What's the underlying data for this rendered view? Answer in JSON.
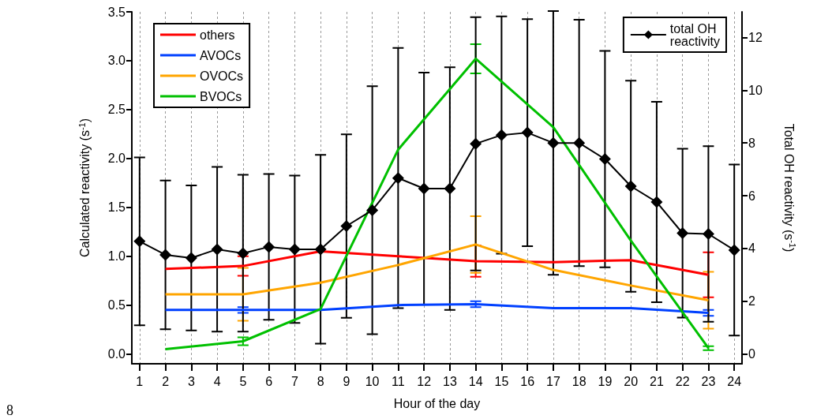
{
  "chart_data": {
    "type": "line",
    "xlabel": "Hour of the day",
    "ylabel": "Calculated reactivity (s$^{-1}$)",
    "y2label": "Total OH reactivity (s$^{-1}$)",
    "x": [
      1,
      2,
      3,
      4,
      5,
      6,
      7,
      8,
      9,
      10,
      11,
      12,
      13,
      14,
      15,
      16,
      17,
      18,
      19,
      20,
      21,
      22,
      23,
      24
    ],
    "xlim": [
      0.7,
      24.3
    ],
    "xticks": [
      1,
      2,
      3,
      4,
      5,
      6,
      7,
      8,
      9,
      10,
      11,
      12,
      13,
      14,
      15,
      16,
      17,
      18,
      19,
      20,
      21,
      22,
      23,
      24
    ],
    "ylim": [
      -0.1,
      3.5
    ],
    "yticks": [
      {
        "value": 0,
        "label": "0.0"
      },
      {
        "value": 0.5,
        "label": "0.5"
      },
      {
        "value": 1,
        "label": "1.0"
      },
      {
        "value": 1.5,
        "label": "1.5"
      },
      {
        "value": 2,
        "label": "2.0"
      },
      {
        "value": 2.5,
        "label": "2.5"
      },
      {
        "value": 3,
        "label": "3.0"
      },
      {
        "value": 3.5,
        "label": "3.5"
      }
    ],
    "y2lim": [
      -0.37,
      12.97
    ],
    "y2ticks": [
      0,
      2,
      4,
      6,
      8,
      10,
      12
    ],
    "grid": "x",
    "legend": "top left",
    "line_style": "solid",
    "annotations": [
      "8"
    ],
    "series": [
      {
        "name": "others",
        "color": "#ff0000",
        "x": [
          2,
          5,
          8,
          11,
          14,
          17,
          20,
          23
        ],
        "values": [
          0.87,
          0.9,
          1.05,
          1.0,
          0.95,
          0.94,
          0.96,
          0.81
        ],
        "errors": [
          null,
          0.1,
          null,
          null,
          0.16,
          null,
          null,
          0.23
        ]
      },
      {
        "name": "AVOCs",
        "color": "#0040ff",
        "x": [
          2,
          5,
          8,
          11,
          14,
          17,
          20,
          23
        ],
        "values": [
          0.45,
          0.45,
          0.45,
          0.5,
          0.51,
          0.47,
          0.47,
          0.42
        ],
        "errors": [
          null,
          0.03,
          null,
          null,
          0.03,
          null,
          null,
          0.03
        ]
      },
      {
        "name": "OVOCs",
        "color": "#ffa500",
        "x": [
          2,
          5,
          8,
          11,
          14,
          17,
          20,
          23
        ],
        "values": [
          0.61,
          0.61,
          0.73,
          0.91,
          1.12,
          0.86,
          0.7,
          0.55
        ],
        "errors": [
          null,
          0.27,
          null,
          null,
          0.29,
          null,
          null,
          0.29
        ]
      },
      {
        "name": "BVOCs",
        "color": "#00c000",
        "x": [
          2,
          5,
          8,
          11,
          14,
          17,
          20,
          23
        ],
        "values": [
          0.05,
          0.13,
          0.46,
          2.09,
          3.02,
          2.32,
          1.16,
          0.06
        ],
        "errors": [
          null,
          0.04,
          null,
          null,
          0.15,
          null,
          null,
          0.02
        ]
      },
      {
        "name": "total OH reactivity",
        "color": "#000000",
        "axis": "y2",
        "marker": "diamond",
        "values": [
          4.27,
          3.76,
          3.64,
          3.97,
          3.82,
          4.06,
          3.97,
          3.97,
          4.85,
          5.45,
          6.67,
          6.27,
          6.27,
          7.97,
          8.3,
          8.39,
          8.0,
          8.0,
          7.39,
          6.36,
          5.76,
          4.58,
          4.55,
          3.94
        ],
        "errors": [
          3.18,
          2.82,
          2.75,
          3.12,
          2.97,
          2.76,
          2.79,
          3.58,
          3.48,
          4.7,
          4.93,
          4.4,
          4.6,
          4.8,
          4.5,
          4.3,
          5.0,
          4.67,
          4.1,
          4.0,
          3.8,
          3.2,
          3.33,
          3.24
        ]
      }
    ]
  }
}
